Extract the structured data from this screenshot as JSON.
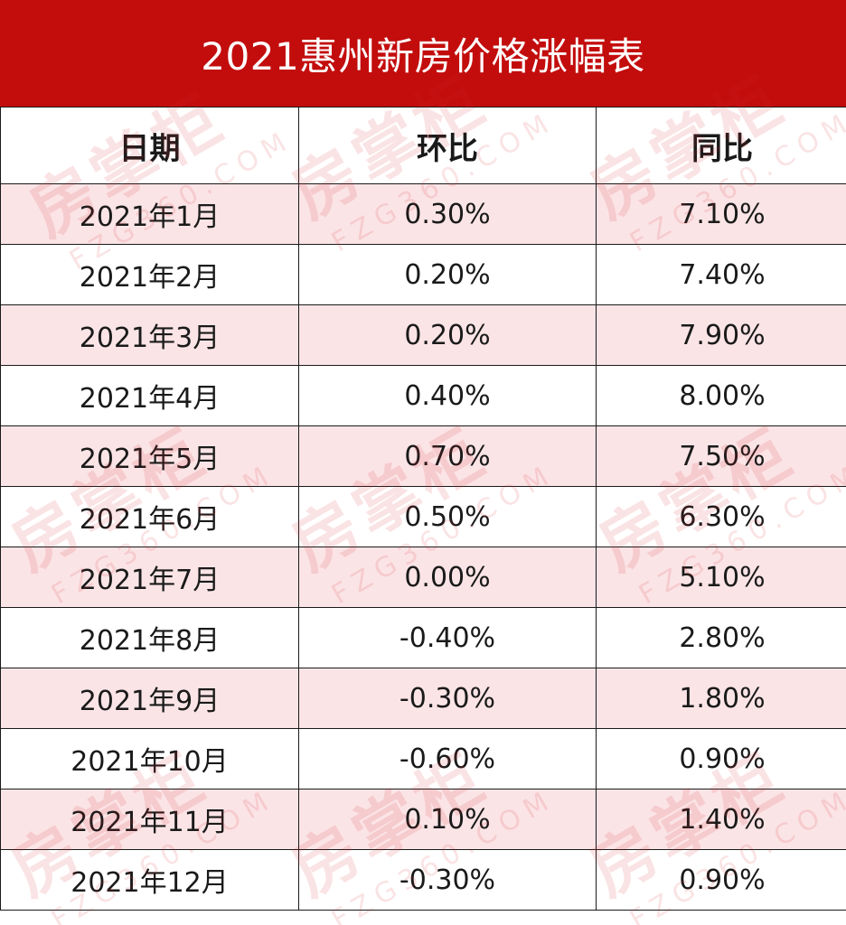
{
  "title": "2021惠州新房价格涨幅表",
  "headers": [
    "日期",
    "环比",
    "同比"
  ],
  "rows": [
    {
      "date": "2021年1月",
      "mom": "0.30%",
      "yoy": "7.10%"
    },
    {
      "date": "2021年2月",
      "mom": "0.20%",
      "yoy": "7.40%"
    },
    {
      "date": "2021年3月",
      "mom": "0.20%",
      "yoy": "7.90%"
    },
    {
      "date": "2021年4月",
      "mom": "0.40%",
      "yoy": "8.00%"
    },
    {
      "date": "2021年5月",
      "mom": "0.70%",
      "yoy": "7.50%"
    },
    {
      "date": "2021年6月",
      "mom": "0.50%",
      "yoy": "6.30%"
    },
    {
      "date": "2021年7月",
      "mom": "0.00%",
      "yoy": "5.10%"
    },
    {
      "date": "2021年8月",
      "mom": "-0.40%",
      "yoy": "2.80%"
    },
    {
      "date": "2021年9月",
      "mom": "-0.30%",
      "yoy": "1.80%"
    },
    {
      "date": "2021年10月",
      "mom": "-0.60%",
      "yoy": "0.90%"
    },
    {
      "date": "2021年11月",
      "mom": "0.10%",
      "yoy": "1.40%"
    },
    {
      "date": "2021年12月",
      "mom": "-0.30%",
      "yoy": "0.90%"
    }
  ],
  "watermark": {
    "brand": "房掌柜",
    "site": "FZG360.COM"
  },
  "colors": {
    "title_bar": "#c30d0d",
    "row_alt": "#fbe4e6",
    "border": "#1a1a1a"
  }
}
